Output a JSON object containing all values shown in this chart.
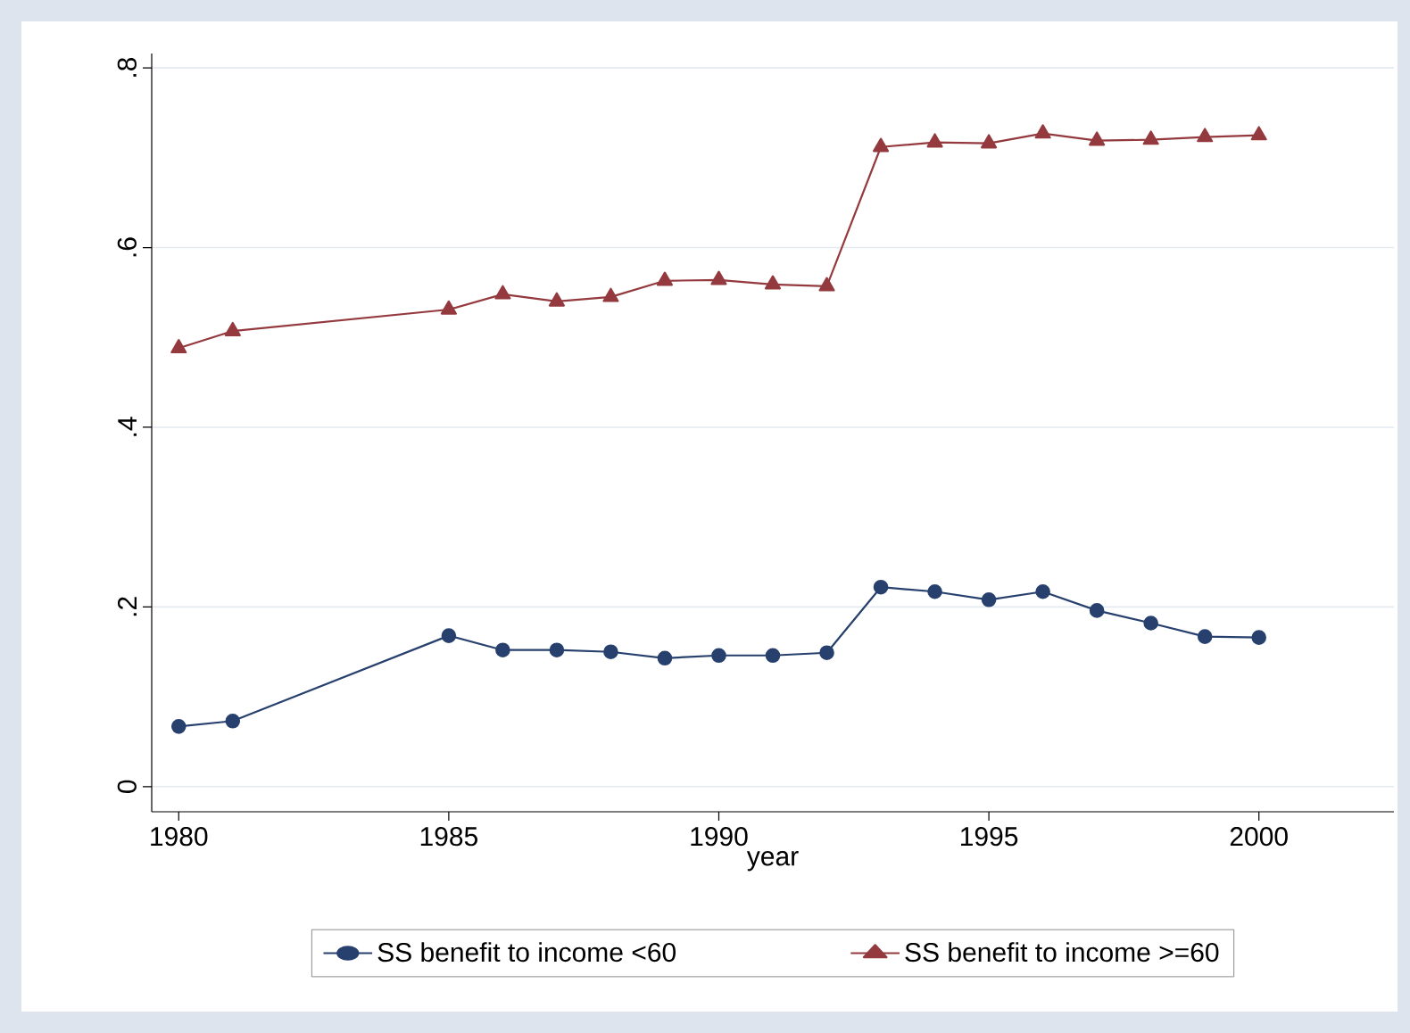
{
  "chart_data": {
    "type": "line",
    "xlabel": "year",
    "x": [
      1980,
      1981,
      1985,
      1986,
      1987,
      1988,
      1989,
      1990,
      1991,
      1992,
      1993,
      1994,
      1995,
      1996,
      1997,
      1998,
      1999,
      2000
    ],
    "series": [
      {
        "name": "SS benefit to income <60",
        "color": "#27406e",
        "marker": "circle",
        "values": [
          0.067,
          0.073,
          0.168,
          0.152,
          0.152,
          0.15,
          0.143,
          0.146,
          0.146,
          0.149,
          0.222,
          0.217,
          0.208,
          0.217,
          0.196,
          0.182,
          0.167,
          0.166
        ]
      },
      {
        "name": "SS benefit to income >=60",
        "color": "#943a3f",
        "marker": "triangle",
        "values": [
          0.488,
          0.507,
          0.531,
          0.548,
          0.54,
          0.545,
          0.563,
          0.564,
          0.559,
          0.557,
          0.712,
          0.717,
          0.716,
          0.727,
          0.719,
          0.72,
          0.723,
          0.725
        ]
      }
    ],
    "xlim": [
      1979.5,
      2002.5
    ],
    "ylim": [
      -0.028,
      0.816
    ],
    "xticks": [
      1980,
      1985,
      1990,
      1995,
      2000
    ],
    "yticks": [
      0,
      {
        "value": 0.2,
        "label": ".2"
      },
      {
        "value": 0.4,
        "label": ".4"
      },
      {
        "value": 0.6,
        "label": ".6"
      },
      {
        "value": 0.8,
        "label": ".8"
      }
    ],
    "grid": "y",
    "legend": "bottom",
    "line_style": "solid"
  }
}
